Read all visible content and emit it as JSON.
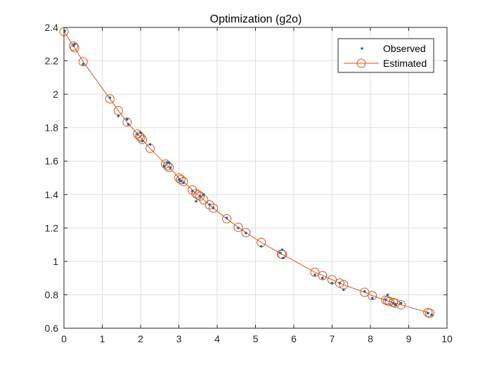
{
  "chart_data": {
    "type": "scatter",
    "title": "Optimization (g2o)",
    "xlabel": "",
    "ylabel": "",
    "xlim": [
      0,
      10
    ],
    "ylim": [
      0.6,
      2.4
    ],
    "xticks": [
      0,
      1,
      2,
      3,
      4,
      5,
      6,
      7,
      8,
      9,
      10
    ],
    "yticks": [
      0.6,
      0.8,
      1,
      1.2,
      1.4,
      1.6,
      1.8,
      2,
      2.2,
      2.4
    ],
    "xtick_labels": [
      "0",
      "1",
      "2",
      "3",
      "4",
      "5",
      "6",
      "7",
      "8",
      "9",
      "10"
    ],
    "ytick_labels": [
      "0.6",
      "0.8",
      "1",
      "1.2",
      "1.4",
      "1.6",
      "1.8",
      "2",
      "2.2",
      "2.4"
    ],
    "grid": true,
    "legend_position": "top-right",
    "series": [
      {
        "name": "Observed",
        "style": "dots",
        "color": "#0072BD",
        "x": [
          0.02,
          0.25,
          0.28,
          0.5,
          1.2,
          1.42,
          1.65,
          1.68,
          1.92,
          2.0,
          2.05,
          2.25,
          2.62,
          2.7,
          2.75,
          2.78,
          3.0,
          3.05,
          3.12,
          3.35,
          3.45,
          3.55,
          3.65,
          3.8,
          3.9,
          4.25,
          4.55,
          4.75,
          5.15,
          5.65,
          5.7,
          5.72,
          6.55,
          6.75,
          7.0,
          7.2,
          7.3,
          7.85,
          8.05,
          8.4,
          8.45,
          8.6,
          8.65,
          8.8,
          9.5,
          9.6
        ],
        "y": [
          2.38,
          2.29,
          2.3,
          2.18,
          1.98,
          1.87,
          1.85,
          1.82,
          1.76,
          1.77,
          1.72,
          1.7,
          1.57,
          1.59,
          1.59,
          1.56,
          1.49,
          1.48,
          1.47,
          1.42,
          1.36,
          1.39,
          1.4,
          1.34,
          1.32,
          1.26,
          1.2,
          1.17,
          1.09,
          1.05,
          1.07,
          1.02,
          0.92,
          0.9,
          0.87,
          0.87,
          0.83,
          0.82,
          0.78,
          0.77,
          0.8,
          0.75,
          0.74,
          0.75,
          0.69,
          0.68
        ]
      },
      {
        "name": "Estimated",
        "style": "line-circles",
        "color": "#D95319",
        "x": [
          0.0,
          0.25,
          0.28,
          0.5,
          1.2,
          1.42,
          1.65,
          1.92,
          1.97,
          2.0,
          2.05,
          2.25,
          2.65,
          2.7,
          2.75,
          3.0,
          3.05,
          3.12,
          3.35,
          3.45,
          3.5,
          3.55,
          3.65,
          3.8,
          3.9,
          4.25,
          4.55,
          4.75,
          5.15,
          5.68,
          5.7,
          6.55,
          6.75,
          7.0,
          7.2,
          7.3,
          7.85,
          8.05,
          8.4,
          8.45,
          8.5,
          8.6,
          8.65,
          8.8,
          9.5,
          9.55
        ],
        "y": [
          2.375,
          2.288,
          2.278,
          2.195,
          1.972,
          1.902,
          1.833,
          1.762,
          1.75,
          1.742,
          1.729,
          1.676,
          1.583,
          1.572,
          1.562,
          1.5,
          1.49,
          1.478,
          1.428,
          1.405,
          1.398,
          1.39,
          1.368,
          1.338,
          1.318,
          1.255,
          1.204,
          1.172,
          1.113,
          1.044,
          1.042,
          0.935,
          0.915,
          0.89,
          0.87,
          0.86,
          0.815,
          0.795,
          0.768,
          0.764,
          0.76,
          0.754,
          0.75,
          0.74,
          0.694,
          0.69
        ]
      }
    ]
  }
}
